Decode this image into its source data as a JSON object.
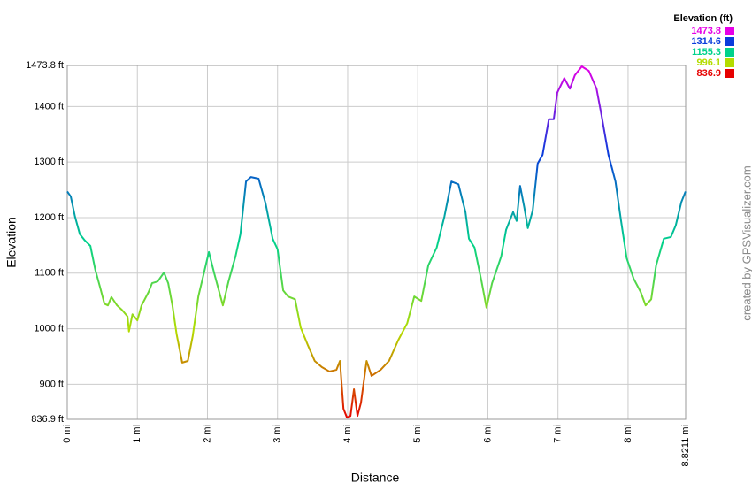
{
  "chart_data": {
    "type": "line",
    "xlabel": "Distance",
    "ylabel": "Elevation",
    "credit": "created by GPSVisualizer.com",
    "legend_title": "Elevation (ft)",
    "legend": [
      {
        "label": 1473.8,
        "color": "#e600e6"
      },
      {
        "label": 1314.6,
        "color": "#0a3cdc"
      },
      {
        "label": 1155.3,
        "color": "#00d28c"
      },
      {
        "label": 996.1,
        "color": "#b4dc00"
      },
      {
        "label": 836.9,
        "color": "#e60000"
      }
    ],
    "xlim": [
      0,
      8.8211
    ],
    "ylim": [
      836.9,
      1473.8
    ],
    "xticks": [
      {
        "value": 0,
        "label": "0 mi"
      },
      {
        "value": 1,
        "label": "1 mi"
      },
      {
        "value": 2,
        "label": "2 mi"
      },
      {
        "value": 3,
        "label": "3 mi"
      },
      {
        "value": 4,
        "label": "4 mi"
      },
      {
        "value": 5,
        "label": "5 mi"
      },
      {
        "value": 6,
        "label": "6 mi"
      },
      {
        "value": 7,
        "label": "7 mi"
      },
      {
        "value": 8,
        "label": "8 mi"
      },
      {
        "value": 8.8211,
        "label": "8.8211 mi"
      }
    ],
    "yticks": [
      {
        "value": 836.9,
        "label": "836.9 ft"
      },
      {
        "value": 900,
        "label": "900 ft"
      },
      {
        "value": 1000,
        "label": "1000 ft"
      },
      {
        "value": 1100,
        "label": "1100 ft"
      },
      {
        "value": 1200,
        "label": "1200 ft"
      },
      {
        "value": 1300,
        "label": "1300 ft"
      },
      {
        "value": 1400,
        "label": "1400 ft"
      },
      {
        "value": 1473.8,
        "label": "1473.8 ft"
      }
    ],
    "grid": true,
    "x": [
      0,
      0.05,
      0.11,
      0.18,
      0.25,
      0.33,
      0.4,
      0.47,
      0.53,
      0.58,
      0.63,
      0.71,
      0.78,
      0.86,
      0.88,
      0.93,
      1.0,
      1.06,
      1.16,
      1.21,
      1.29,
      1.38,
      1.44,
      1.5,
      1.56,
      1.64,
      1.72,
      1.79,
      1.87,
      1.94,
      2.02,
      2.1,
      2.22,
      2.3,
      2.4,
      2.47,
      2.55,
      2.62,
      2.73,
      2.83,
      2.93,
      3.0,
      3.08,
      3.15,
      3.25,
      3.33,
      3.43,
      3.53,
      3.63,
      3.74,
      3.84,
      3.89,
      3.94,
      3.99,
      4.04,
      4.09,
      4.14,
      4.19,
      4.27,
      4.34,
      4.47,
      4.59,
      4.72,
      4.85,
      4.95,
      5.05,
      5.15,
      5.27,
      5.38,
      5.48,
      5.58,
      5.68,
      5.73,
      5.81,
      5.91,
      5.98,
      6.06,
      6.19,
      6.26,
      6.36,
      6.41,
      6.46,
      6.52,
      6.57,
      6.64,
      6.71,
      6.78,
      6.87,
      6.94,
      6.99,
      7.09,
      7.17,
      7.24,
      7.34,
      7.44,
      7.55,
      7.62,
      7.72,
      7.82,
      7.9,
      7.98,
      8.08,
      8.18,
      8.25,
      8.33,
      8.4,
      8.51,
      8.61,
      8.68,
      8.76,
      8.82
    ],
    "values": [
      1247,
      1238,
      1202,
      1170,
      1159,
      1149,
      1106,
      1074,
      1045,
      1042,
      1057,
      1042,
      1034,
      1022,
      995,
      1026,
      1015,
      1042,
      1066,
      1082,
      1085,
      1101,
      1082,
      1042,
      990,
      939,
      942,
      987,
      1058,
      1095,
      1138,
      1098,
      1042,
      1085,
      1130,
      1170,
      1265,
      1273,
      1270,
      1225,
      1162,
      1143,
      1069,
      1058,
      1053,
      1002,
      971,
      942,
      931,
      923,
      926,
      942,
      856,
      840,
      843,
      891,
      843,
      867,
      942,
      915,
      926,
      942,
      979,
      1010,
      1058,
      1050,
      1114,
      1146,
      1202,
      1265,
      1260,
      1210,
      1162,
      1146,
      1085,
      1038,
      1082,
      1130,
      1178,
      1210,
      1194,
      1257,
      1218,
      1181,
      1213,
      1297,
      1313,
      1377,
      1377,
      1425,
      1451,
      1432,
      1456,
      1472,
      1464,
      1432,
      1385,
      1313,
      1265,
      1194,
      1127,
      1090,
      1066,
      1042,
      1053,
      1114,
      1162,
      1165,
      1186,
      1228,
      1247
    ]
  }
}
